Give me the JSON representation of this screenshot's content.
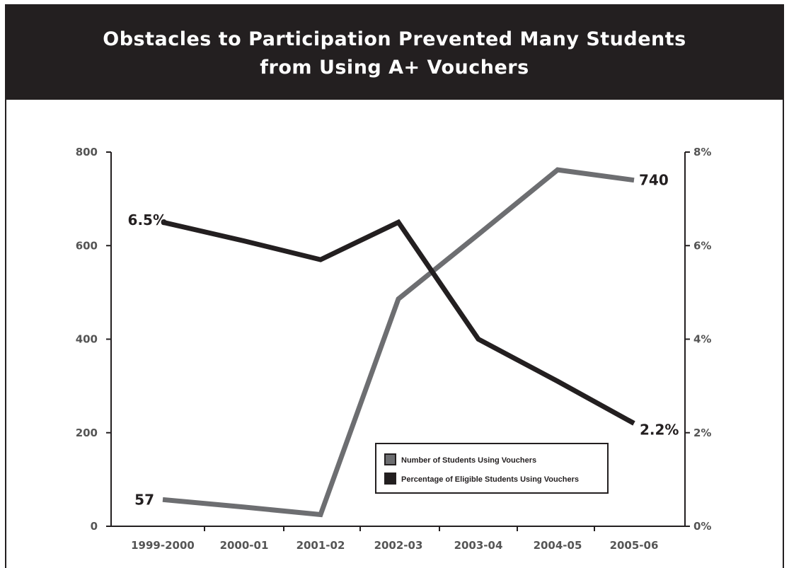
{
  "header": {
    "title_line1": "Obstacles to Participation Prevented Many Students",
    "title_line2": "from Using A+ Vouchers"
  },
  "chart_data": {
    "type": "line",
    "categories": [
      "1999-2000",
      "2000-01",
      "2001-02",
      "2002-03",
      "2003-04",
      "2004-05",
      "2005-06"
    ],
    "left_axis": {
      "ticks": [
        "0",
        "200",
        "400",
        "600",
        "800"
      ],
      "ylim": [
        0,
        800
      ]
    },
    "right_axis": {
      "ticks": [
        "0%",
        "2%",
        "4%",
        "6%",
        "8%"
      ],
      "ylim": [
        0,
        8
      ]
    },
    "series": [
      {
        "name": "Number of Students Using Vouchers",
        "axis": "left",
        "color": "#6d6e71",
        "values": [
          57,
          41,
          25,
          486,
          624,
          762,
          740
        ]
      },
      {
        "name": "Percentage of Eligible Students Using Vouchers",
        "axis": "right",
        "color": "#231f20",
        "values": [
          6.5,
          6.1,
          5.7,
          6.5,
          4.0,
          3.1,
          2.2
        ]
      }
    ],
    "annotations": {
      "count_start": "57",
      "count_end": "740",
      "pct_start": "6.5%",
      "pct_end": "2.2%"
    },
    "legend_position": "bottom-right",
    "grid": false
  }
}
